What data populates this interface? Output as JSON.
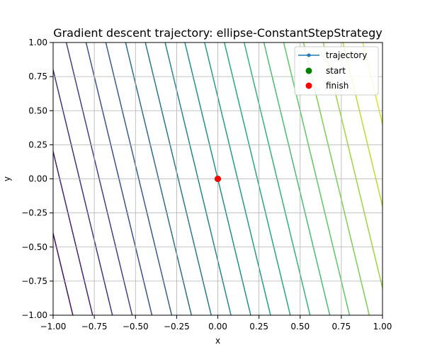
{
  "chart_data": {
    "type": "line",
    "title": "Gradient descent trajectory: ellipse-ConstantStepStrategy",
    "xlabel": "x",
    "ylabel": "y",
    "xlim": [
      -1.0,
      1.0
    ],
    "ylim": [
      -1.0,
      1.0
    ],
    "xticks": [
      -1.0,
      -0.75,
      -0.5,
      -0.25,
      0.0,
      0.25,
      0.5,
      0.75,
      1.0
    ],
    "yticks": [
      -1.0,
      -0.75,
      -0.5,
      -0.25,
      0.0,
      0.25,
      0.5,
      0.75,
      1.0
    ],
    "xtick_labels": [
      "−1.00",
      "−0.75",
      "−0.50",
      "−0.25",
      "0.00",
      "0.25",
      "0.50",
      "0.75",
      "1.00"
    ],
    "ytick_labels": [
      "−1.00",
      "−0.75",
      "−0.50",
      "−0.25",
      "0.00",
      "0.25",
      "0.50",
      "0.75",
      "1.00"
    ],
    "grid": true,
    "legend_position": "top-right",
    "contours": {
      "function": "f(x, y) = 5x + y",
      "levels": [
        -6,
        -5.4,
        -4.8,
        -4.2,
        -3.6,
        -3.0,
        -2.4,
        -1.8,
        -1.2,
        -0.6,
        0.0,
        0.6,
        1.2,
        1.8,
        2.4,
        3.0,
        3.6,
        4.2,
        4.8,
        5.4
      ],
      "colormap": "viridis",
      "level_range": [
        -6,
        6
      ]
    },
    "series": [
      {
        "name": "trajectory",
        "x": [
          0.0
        ],
        "y": [
          0.0
        ],
        "color": "#1f77b4",
        "marker": "circle"
      },
      {
        "name": "start",
        "x": [
          0.0
        ],
        "y": [
          0.0
        ],
        "color": "#008000",
        "marker": "circle"
      },
      {
        "name": "finish",
        "x": [
          0.0
        ],
        "y": [
          0.0
        ],
        "color": "#ff0000",
        "marker": "circle"
      }
    ]
  }
}
